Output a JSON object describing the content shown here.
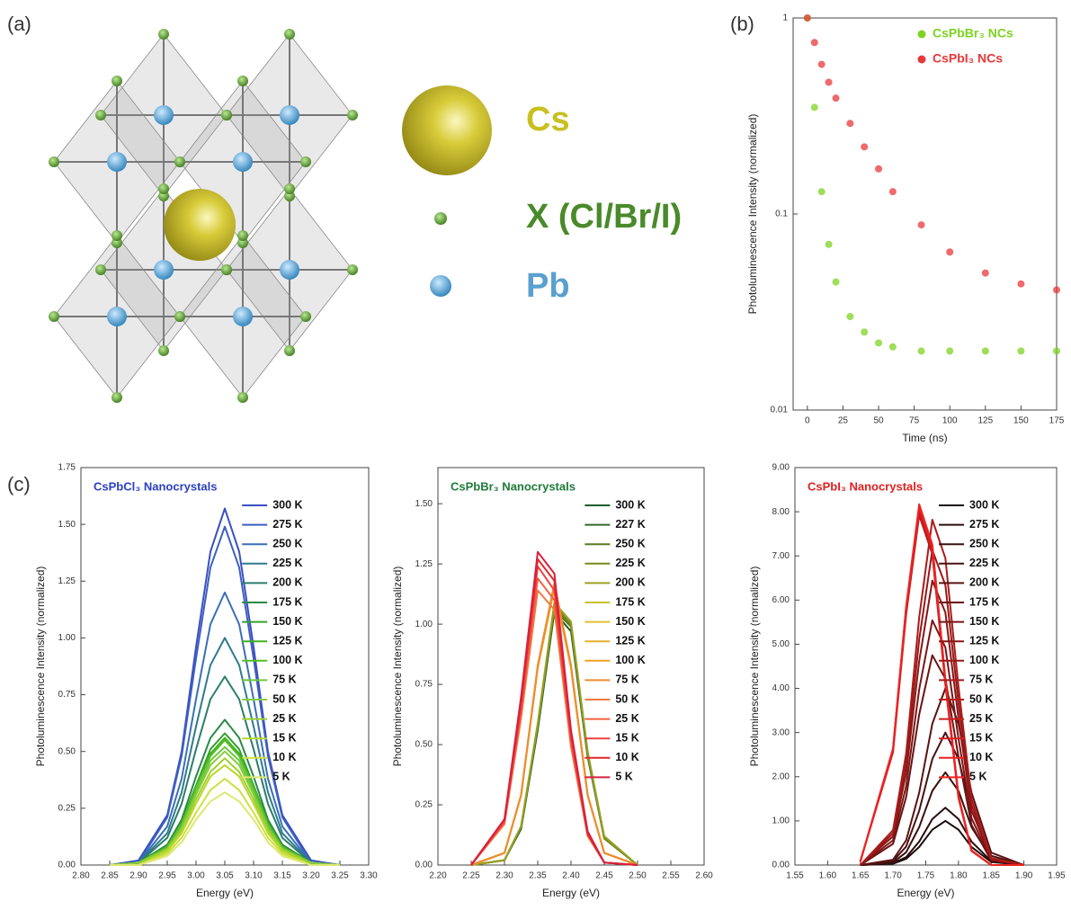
{
  "panel_labels": [
    "(a)",
    "(b)",
    "(c)"
  ],
  "diagram": {
    "legend": [
      {
        "label": "Cs"
      },
      {
        "label": "X (Cl/Br/I)"
      },
      {
        "label": "Pb"
      }
    ]
  },
  "chart_data": [
    {
      "type": "scatter",
      "log_y": true,
      "xlabel": "Time (ns)",
      "ylabel": "Photoluminescence Intensity (normalized)",
      "x": [
        0,
        5,
        10,
        15,
        20,
        30,
        40,
        50,
        60,
        80,
        100,
        125,
        150,
        175
      ],
      "xlim": [
        -10,
        175
      ],
      "xticks": [
        0,
        25,
        50,
        75,
        100,
        125,
        150,
        175
      ],
      "ylim": [
        0.01,
        1
      ],
      "yticks": [
        0.01,
        0.1,
        1
      ],
      "legend": "upper right",
      "series": [
        {
          "name": "CsPbBr₃ NCs",
          "color": "#7ed321",
          "values": [
            1,
            0.35,
            0.13,
            0.07,
            0.045,
            0.03,
            0.025,
            0.022,
            0.021,
            0.02,
            0.02,
            0.02,
            0.02,
            0.02
          ]
        },
        {
          "name": "CsPbI₃ NCs",
          "color": "#e8383a",
          "values": [
            1,
            0.75,
            0.58,
            0.47,
            0.39,
            0.29,
            0.22,
            0.17,
            0.13,
            0.088,
            0.064,
            0.05,
            0.044,
            0.041
          ]
        }
      ]
    },
    {
      "type": "line",
      "title": "CsPbCl₃ Nanocrystals",
      "title_color": "#2a3fc0",
      "xlabel": "Energy (eV)",
      "ylabel": "Photoluminescence Intensity (normalized)",
      "x": [
        2.85,
        2.9,
        2.95,
        2.975,
        3.0,
        3.025,
        3.05,
        3.075,
        3.1,
        3.125,
        3.15,
        3.2,
        3.25
      ],
      "xlim": [
        2.8,
        3.3
      ],
      "xticks": [
        {
          "value": 2.8,
          "label": "2.80"
        },
        {
          "value": 2.85,
          "label": "2.85"
        },
        {
          "value": 2.9,
          "label": "2.90"
        },
        {
          "value": 2.95,
          "label": "2.95"
        },
        {
          "value": 3.0,
          "label": "3.00"
        },
        {
          "value": 3.05,
          "label": "3.05"
        },
        {
          "value": 3.1,
          "label": "3.10"
        },
        {
          "value": 3.15,
          "label": "3.15"
        },
        {
          "value": 3.2,
          "label": "3.20"
        },
        {
          "value": 3.25,
          "label": "3.25"
        },
        {
          "value": 3.3,
          "label": "3.30"
        }
      ],
      "ylim": [
        0,
        1.75
      ],
      "yticks": [
        {
          "value": 0,
          "label": "0.00"
        },
        {
          "value": 0.25,
          "label": "0.25"
        },
        {
          "value": 0.5,
          "label": "0.50"
        },
        {
          "value": 0.75,
          "label": "0.75"
        },
        {
          "value": 1.0,
          "label": "1.00"
        },
        {
          "value": 1.25,
          "label": "1.25"
        },
        {
          "value": 1.5,
          "label": "1.50"
        },
        {
          "value": 1.75,
          "label": "1.75"
        }
      ],
      "legend": "upper right",
      "series": [
        {
          "name": "300 K",
          "color": "#3a4fc4",
          "values": [
            0,
            0.02,
            0.22,
            0.5,
            0.96,
            1.38,
            1.57,
            1.38,
            0.96,
            0.5,
            0.22,
            0.02,
            0
          ]
        },
        {
          "name": "275 K",
          "color": "#3d5fc0",
          "values": [
            0,
            0.01,
            0.21,
            0.48,
            0.91,
            1.31,
            1.49,
            1.31,
            0.91,
            0.48,
            0.21,
            0.01,
            0
          ]
        },
        {
          "name": "250 K",
          "color": "#3a6fb8",
          "values": [
            0,
            0.01,
            0.17,
            0.38,
            0.73,
            1.06,
            1.2,
            1.06,
            0.73,
            0.38,
            0.17,
            0.01,
            0
          ]
        },
        {
          "name": "225 K",
          "color": "#2f7a8f",
          "values": [
            0,
            0.01,
            0.14,
            0.32,
            0.61,
            0.88,
            1.0,
            0.88,
            0.61,
            0.32,
            0.14,
            0.01,
            0
          ]
        },
        {
          "name": "200 K",
          "color": "#2a7e6a",
          "values": [
            0,
            0.01,
            0.12,
            0.27,
            0.51,
            0.73,
            0.83,
            0.73,
            0.51,
            0.27,
            0.12,
            0.01,
            0
          ]
        },
        {
          "name": "175 K",
          "color": "#2a8a4a",
          "values": [
            0,
            0.01,
            0.09,
            0.2,
            0.39,
            0.56,
            0.64,
            0.56,
            0.39,
            0.2,
            0.09,
            0.01,
            0
          ]
        },
        {
          "name": "150 K",
          "color": "#34a030",
          "values": [
            0,
            0.01,
            0.08,
            0.19,
            0.35,
            0.51,
            0.58,
            0.51,
            0.35,
            0.19,
            0.08,
            0.01,
            0
          ]
        },
        {
          "name": "125 K",
          "color": "#40b020",
          "values": [
            0,
            0.01,
            0.08,
            0.18,
            0.34,
            0.49,
            0.56,
            0.49,
            0.34,
            0.18,
            0.08,
            0.01,
            0
          ]
        },
        {
          "name": "100 K",
          "color": "#55c020",
          "values": [
            0,
            0.01,
            0.08,
            0.18,
            0.34,
            0.48,
            0.55,
            0.48,
            0.34,
            0.18,
            0.08,
            0.01,
            0
          ]
        },
        {
          "name": "75 K",
          "color": "#6cc83a",
          "values": [
            0,
            0.01,
            0.07,
            0.17,
            0.32,
            0.46,
            0.52,
            0.46,
            0.32,
            0.17,
            0.07,
            0.01,
            0
          ]
        },
        {
          "name": "50 K",
          "color": "#88cc40",
          "values": [
            0,
            0.01,
            0.07,
            0.16,
            0.31,
            0.44,
            0.5,
            0.44,
            0.31,
            0.16,
            0.07,
            0.01,
            0
          ]
        },
        {
          "name": "25 K",
          "color": "#a0d030",
          "values": [
            0,
            0,
            0.07,
            0.15,
            0.29,
            0.41,
            0.47,
            0.41,
            0.29,
            0.15,
            0.07,
            0,
            0
          ]
        },
        {
          "name": "15 K",
          "color": "#b8d828",
          "values": [
            0,
            0,
            0.06,
            0.14,
            0.27,
            0.39,
            0.44,
            0.39,
            0.27,
            0.14,
            0.06,
            0,
            0
          ]
        },
        {
          "name": "10 K",
          "color": "#cce040",
          "values": [
            0,
            0,
            0.05,
            0.12,
            0.23,
            0.33,
            0.38,
            0.33,
            0.23,
            0.12,
            0.05,
            0,
            0
          ]
        },
        {
          "name": "5 K",
          "color": "#dde870",
          "values": [
            0,
            0,
            0.04,
            0.1,
            0.2,
            0.28,
            0.32,
            0.28,
            0.2,
            0.1,
            0.04,
            0,
            0
          ]
        }
      ]
    },
    {
      "type": "line",
      "title": "CsPbBr₃ Nanocrystals",
      "title_color": "#1f7a3a",
      "xlabel": "Energy (eV)",
      "ylabel": "Photoluminescence Intensity (normalized)",
      "x": [
        2.25,
        2.3,
        2.325,
        2.35,
        2.375,
        2.4,
        2.425,
        2.45,
        2.5
      ],
      "xlim": [
        2.2,
        2.6
      ],
      "xticks": [
        {
          "value": 2.2,
          "label": "2.20"
        },
        2.25,
        {
          "value": 2.3,
          "label": "2.30"
        },
        2.35,
        {
          "value": 2.4,
          "label": "2.40"
        },
        2.45,
        {
          "value": 2.5,
          "label": "2.50"
        },
        2.55,
        {
          "value": 2.6,
          "label": "2.60"
        }
      ],
      "ylim": [
        0,
        1.65
      ],
      "yticks": [
        {
          "value": 0,
          "label": "0.00"
        },
        {
          "value": 0.25,
          "label": "0.25"
        },
        {
          "value": 0.5,
          "label": "0.50"
        },
        {
          "value": 0.75,
          "label": "0.75"
        },
        {
          "value": 1.0,
          "label": "1.00"
        },
        {
          "value": 1.25,
          "label": "1.25"
        },
        {
          "value": 1.5,
          "label": "1.50"
        }
      ],
      "legend": "upper right",
      "series": [
        {
          "name": "300 K",
          "color": "#1f5e2a",
          "values": [
            0,
            0.02,
            0.15,
            0.56,
            1.05,
            0.97,
            0.45,
            0.11,
            0
          ]
        },
        {
          "name": "227 K",
          "color": "#336a2a",
          "values": [
            0,
            0.02,
            0.16,
            0.57,
            1.06,
            0.99,
            0.46,
            0.11,
            0
          ]
        },
        {
          "name": "250 K",
          "color": "#5a7a20",
          "values": [
            0,
            0.02,
            0.16,
            0.58,
            1.07,
            0.99,
            0.46,
            0.11,
            0
          ]
        },
        {
          "name": "225 K",
          "color": "#7a8a20",
          "values": [
            0,
            0.02,
            0.16,
            0.58,
            1.08,
            1.0,
            0.47,
            0.11,
            0
          ]
        },
        {
          "name": "200 K",
          "color": "#9aa020",
          "values": [
            0,
            0.02,
            0.16,
            0.59,
            1.09,
            1.01,
            0.47,
            0.12,
            0
          ]
        },
        {
          "name": "175 K",
          "color": "#c8c030",
          "values": [
            0,
            0.05,
            0.29,
            0.82,
            1.15,
            0.82,
            0.29,
            0.05,
            0
          ]
        },
        {
          "name": "150 K",
          "color": "#e0c030",
          "values": [
            0,
            0.05,
            0.29,
            0.82,
            1.15,
            0.82,
            0.29,
            0.05,
            0
          ]
        },
        {
          "name": "125 K",
          "color": "#e8b030",
          "values": [
            0,
            0.05,
            0.29,
            0.82,
            1.15,
            0.82,
            0.29,
            0.05,
            0
          ]
        },
        {
          "name": "100 K",
          "color": "#f0a020",
          "values": [
            0,
            0.05,
            0.29,
            0.82,
            1.16,
            0.82,
            0.29,
            0.05,
            0
          ]
        },
        {
          "name": "75 K",
          "color": "#f08a30",
          "values": [
            0,
            0.05,
            0.29,
            0.83,
            1.17,
            0.83,
            0.29,
            0.05,
            0
          ]
        },
        {
          "name": "50 K",
          "color": "#f07a40",
          "values": [
            0,
            0.17,
            0.61,
            1.14,
            1.06,
            0.49,
            0.12,
            0.01,
            0
          ]
        },
        {
          "name": "25 K",
          "color": "#f06040",
          "values": [
            0,
            0.18,
            0.64,
            1.19,
            1.1,
            0.51,
            0.13,
            0.01,
            0
          ]
        },
        {
          "name": "15 K",
          "color": "#f04040",
          "values": [
            0,
            0.18,
            0.66,
            1.24,
            1.14,
            0.53,
            0.13,
            0.01,
            0
          ]
        },
        {
          "name": "10 K",
          "color": "#e02828",
          "values": [
            0,
            0.19,
            0.68,
            1.27,
            1.18,
            0.55,
            0.13,
            0.01,
            0
          ]
        },
        {
          "name": "5 K",
          "color": "#d82040",
          "values": [
            0,
            0.19,
            0.7,
            1.3,
            1.21,
            0.56,
            0.14,
            0.01,
            0
          ]
        }
      ]
    },
    {
      "type": "line",
      "title": "CsPbI₃ Nanocrystals",
      "title_color": "#e02020",
      "xlabel": "Energy (eV)",
      "ylabel": "Photoluminescence Intensity (normalized)",
      "x": [
        1.65,
        1.7,
        1.72,
        1.74,
        1.76,
        1.78,
        1.8,
        1.82,
        1.85,
        1.9
      ],
      "xlim": [
        1.55,
        1.95
      ],
      "xticks": [
        1.55,
        {
          "value": 1.6,
          "label": "1.60"
        },
        1.65,
        {
          "value": 1.7,
          "label": "1.70"
        },
        1.75,
        {
          "value": 1.8,
          "label": "1.80"
        },
        1.85,
        {
          "value": 1.9,
          "label": "1.90"
        },
        1.95
      ],
      "ylim": [
        0,
        9
      ],
      "yticks": [
        {
          "value": 0,
          "label": "0.00"
        },
        {
          "value": 1,
          "label": "1.00"
        },
        {
          "value": 2,
          "label": "2.00"
        },
        {
          "value": 3,
          "label": "3.00"
        },
        {
          "value": 4,
          "label": "4.00"
        },
        {
          "value": 5,
          "label": "5.00"
        },
        {
          "value": 6,
          "label": "6.00"
        },
        {
          "value": 7,
          "label": "7.00"
        },
        {
          "value": 8,
          "label": "8.00"
        },
        {
          "value": 9,
          "label": "9.00"
        }
      ],
      "legend": "upper right",
      "series": [
        {
          "name": "300 K",
          "color": "#1a0a0a",
          "values": [
            0,
            0.03,
            0.14,
            0.41,
            0.8,
            1.0,
            0.8,
            0.41,
            0.07,
            0
          ]
        },
        {
          "name": "275 K",
          "color": "#2a0e0e",
          "values": [
            0,
            0.04,
            0.18,
            0.53,
            1.04,
            1.3,
            1.04,
            0.53,
            0.09,
            0
          ]
        },
        {
          "name": "250 K",
          "color": "#3a1010",
          "values": [
            0,
            0.06,
            0.29,
            0.86,
            1.68,
            2.1,
            1.68,
            0.86,
            0.15,
            0
          ]
        },
        {
          "name": "225 K",
          "color": "#4a1212",
          "values": [
            0,
            0.09,
            0.42,
            1.23,
            2.4,
            3.0,
            2.4,
            1.23,
            0.21,
            0
          ]
        },
        {
          "name": "200 K",
          "color": "#5a1212",
          "values": [
            0,
            0.12,
            0.56,
            1.64,
            3.2,
            4.0,
            3.2,
            1.64,
            0.28,
            0
          ]
        },
        {
          "name": "175 K",
          "color": "#6a1414",
          "values": [
            0,
            0.48,
            1.54,
            3.41,
            4.75,
            4.22,
            2.45,
            0.91,
            0.1,
            0
          ]
        },
        {
          "name": "150 K",
          "color": "#7a1616",
          "values": [
            0,
            0.56,
            1.79,
            3.98,
            5.54,
            4.93,
            2.86,
            1.06,
            0.11,
            0
          ]
        },
        {
          "name": "125 K",
          "color": "#8a1616",
          "values": [
            0,
            0.65,
            2.08,
            4.62,
            6.44,
            5.72,
            3.32,
            1.24,
            0.13,
            0
          ]
        },
        {
          "name": "100 K",
          "color": "#9a1818",
          "values": [
            0,
            0.72,
            2.3,
            5.11,
            7.13,
            6.34,
            3.67,
            1.37,
            0.14,
            0
          ]
        },
        {
          "name": "75 K",
          "color": "#aa1a1a",
          "values": [
            0,
            0.79,
            2.53,
            5.61,
            7.82,
            6.95,
            4.03,
            1.5,
            0.16,
            0
          ]
        },
        {
          "name": "50 K",
          "color": "#ba1c1c",
          "values": [
            0.08,
            2.56,
            5.68,
            7.92,
            7.04,
            4.08,
            1.52,
            0.32,
            0,
            0
          ]
        },
        {
          "name": "25 K",
          "color": "#ca1e1e",
          "values": [
            0.08,
            2.59,
            5.75,
            8.02,
            7.13,
            4.13,
            1.54,
            0.32,
            0,
            0
          ]
        },
        {
          "name": "15 K",
          "color": "#da1e1e",
          "values": [
            0.08,
            2.62,
            5.82,
            8.12,
            7.22,
            4.18,
            1.56,
            0.33,
            0,
            0
          ]
        },
        {
          "name": "10 K",
          "color": "#e82020",
          "values": [
            0.08,
            2.62,
            5.82,
            8.12,
            7.22,
            4.18,
            1.56,
            0.33,
            0,
            0
          ]
        },
        {
          "name": "5 K",
          "color": "#f02222",
          "values": [
            0.08,
            2.64,
            5.86,
            8.17,
            7.26,
            4.21,
            1.57,
            0.33,
            0,
            0
          ]
        }
      ]
    }
  ]
}
